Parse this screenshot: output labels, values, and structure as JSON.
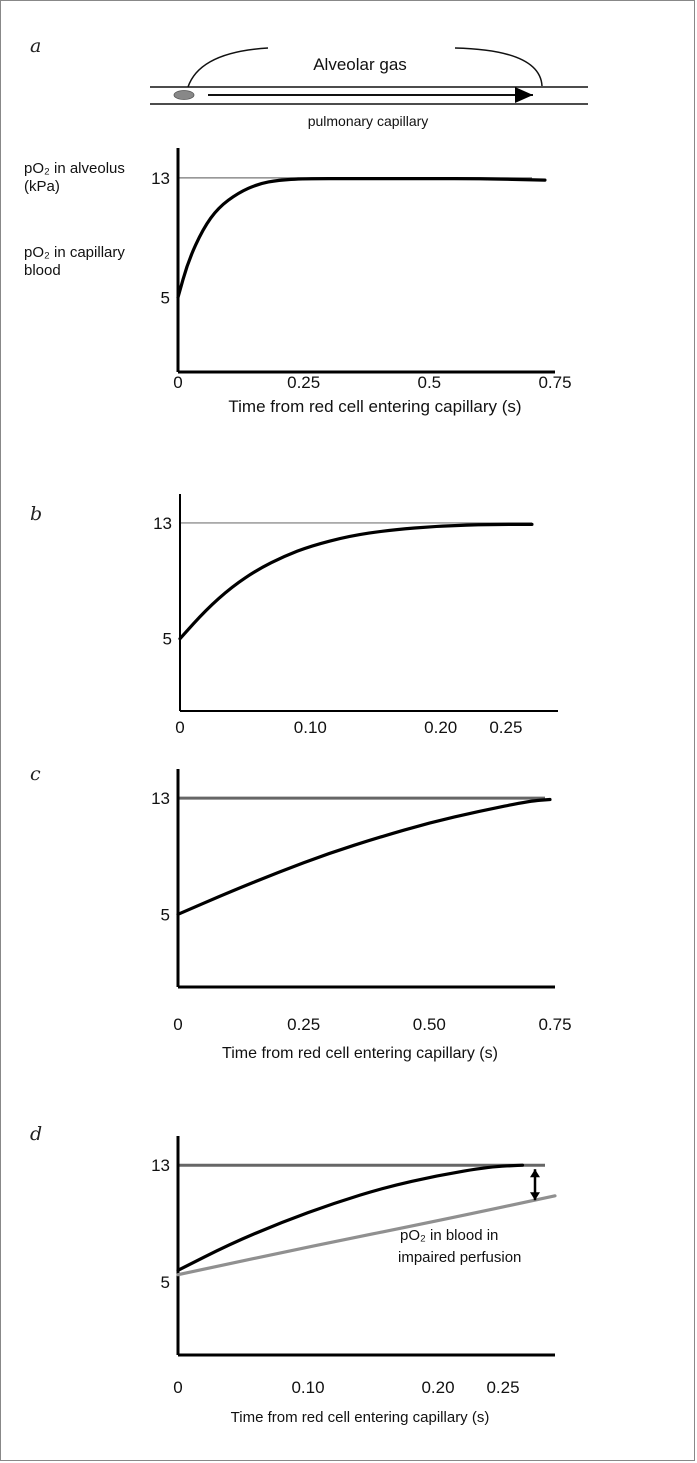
{
  "panels": [
    {
      "letter": "a",
      "diagram": {
        "gas_label": "Alveolar gas",
        "capillary_label": "pulmonary capillary"
      },
      "y_label_top_1": "pO₂ in alveolus",
      "y_label_top_2": "(kPa)",
      "y_label_bottom_1": "pO₂ in capillary",
      "y_label_bottom_2": "blood",
      "xlabel": "Time from red cell entering capillary (s)"
    },
    {
      "letter": "b"
    },
    {
      "letter": "c",
      "xlabel": "Time from red cell entering capillary (s)"
    },
    {
      "letter": "d",
      "annotation_1": "pO₂ in blood in",
      "annotation_2": "impaired perfusion",
      "xlabel": "Time from red cell entering capillary (s)"
    }
  ],
  "chart_data": [
    {
      "type": "line",
      "panel": "a",
      "x_ticks": [
        "0",
        "0.25",
        "0.5",
        "0.75"
      ],
      "y_ticks": [
        "5",
        "13"
      ],
      "xlim": [
        0,
        0.75
      ],
      "ylim": [
        0,
        15
      ],
      "reference_line": {
        "y": 13,
        "color": "#777777"
      },
      "series": [
        {
          "x": [
            0,
            0.02,
            0.05,
            0.08,
            0.12,
            0.16,
            0.2,
            0.25,
            0.35,
            0.5,
            0.6,
            0.73
          ],
          "y": [
            5,
            7.4,
            9.6,
            11.0,
            12.0,
            12.6,
            12.85,
            12.95,
            12.95,
            12.95,
            12.95,
            12.85
          ],
          "color": "#000000"
        }
      ]
    },
    {
      "type": "line",
      "panel": "b",
      "x_ticks": [
        "0",
        "0.10",
        "0.20",
        "0.25"
      ],
      "x_tick_values": [
        0,
        0.1,
        0.2,
        0.25
      ],
      "y_ticks": [
        "5",
        "13"
      ],
      "xlim": [
        0,
        0.29
      ],
      "ylim": [
        0,
        15
      ],
      "reference_line": {
        "y": 13,
        "color": "#777777"
      },
      "series": [
        {
          "x": [
            0,
            0.02,
            0.04,
            0.06,
            0.08,
            0.1,
            0.13,
            0.16,
            0.2,
            0.24,
            0.27
          ],
          "y": [
            5,
            7.0,
            8.6,
            9.8,
            10.7,
            11.4,
            12.1,
            12.5,
            12.8,
            12.9,
            12.9
          ],
          "color": "#000000"
        }
      ]
    },
    {
      "type": "line",
      "panel": "c",
      "x_ticks": [
        "0",
        "0.25",
        "0.50",
        "0.75"
      ],
      "y_ticks": [
        "5",
        "13"
      ],
      "xlim": [
        0,
        0.75
      ],
      "ylim": [
        0,
        15
      ],
      "reference_line": {
        "y": 13,
        "color": "#666666"
      },
      "series": [
        {
          "x": [
            0,
            0.1,
            0.2,
            0.3,
            0.4,
            0.5,
            0.6,
            0.7,
            0.74
          ],
          "y": [
            5,
            6.5,
            7.9,
            9.2,
            10.3,
            11.3,
            12.1,
            12.8,
            12.9
          ],
          "color": "#000000"
        }
      ]
    },
    {
      "type": "line",
      "panel": "d",
      "x_ticks": [
        "0",
        "0.10",
        "0.20",
        "0.25"
      ],
      "x_tick_values": [
        0,
        0.1,
        0.2,
        0.25
      ],
      "y_ticks": [
        "5",
        "13"
      ],
      "xlim": [
        0,
        0.29
      ],
      "ylim": [
        0,
        15
      ],
      "reference_line": {
        "y": 13,
        "color": "#666666"
      },
      "series": [
        {
          "x": [
            0,
            0.04,
            0.08,
            0.12,
            0.16,
            0.2,
            0.24,
            0.265
          ],
          "y": [
            5.8,
            7.6,
            9.1,
            10.4,
            11.5,
            12.3,
            12.9,
            13.0
          ],
          "color": "#000000"
        },
        {
          "x": [
            0,
            0.1,
            0.2,
            0.29
          ],
          "y": [
            5.5,
            7.4,
            9.2,
            10.9
          ],
          "color": "#909090"
        }
      ]
    }
  ]
}
